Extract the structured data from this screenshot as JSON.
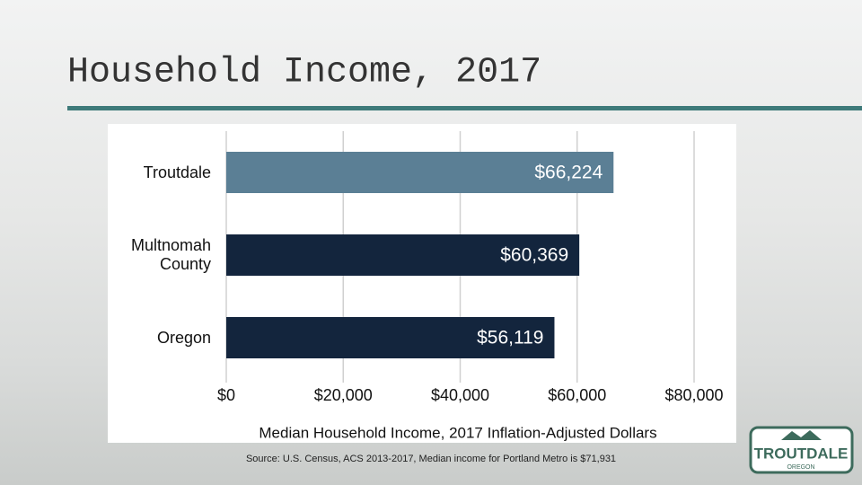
{
  "chart_data": {
    "type": "hbar",
    "title": "Household Income, 2017",
    "categories": [
      "Troutdale",
      "Multnomah County",
      "Oregon"
    ],
    "values": [
      66224,
      60369,
      56119
    ],
    "value_labels": [
      "$66,224",
      "$60,369",
      "$56,119"
    ],
    "colors": [
      "#5b7f95",
      "#13253d",
      "#13253d"
    ],
    "xlim": [
      0,
      80000
    ],
    "xticks": [
      {
        "value": 0,
        "label": "$0"
      },
      {
        "value": 20000,
        "label": "$20,000"
      },
      {
        "value": 40000,
        "label": "$40,000"
      },
      {
        "value": 60000,
        "label": "$60,000"
      },
      {
        "value": 80000,
        "label": "$80,000"
      }
    ],
    "xlabel": "Median Household Income, 2017 Inflation-Adjusted Dollars",
    "source": "Source: U.S. Census, ACS 2013-2017, Median income for Portland Metro is $71,931",
    "grid": true
  },
  "logo": {
    "name": "TROUTDALE",
    "subtitle": "OREGON"
  }
}
